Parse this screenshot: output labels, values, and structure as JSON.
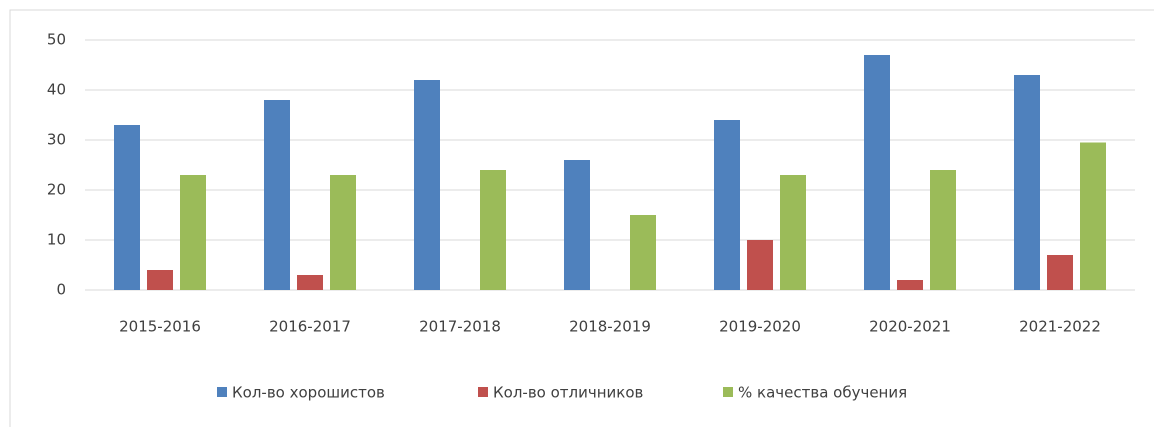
{
  "chart_data": {
    "type": "bar",
    "categories": [
      "2015-2016",
      "2016-2017",
      "2017-2018",
      "2018-2019",
      "2019-2020",
      "2020-2021",
      "2021-2022"
    ],
    "series": [
      {
        "name": "Кол-во хорошистов",
        "color": "#4f81bd",
        "values": [
          33,
          38,
          42,
          26,
          34,
          47,
          43
        ]
      },
      {
        "name": "Кол-во отличников",
        "color": "#c0504d",
        "values": [
          4,
          3,
          0,
          0,
          10,
          2,
          7
        ]
      },
      {
        "name": "% качества обучения",
        "color": "#9bbb59",
        "values": [
          23,
          23,
          24,
          15,
          23,
          24,
          29.5
        ]
      }
    ],
    "ylim": [
      0,
      50
    ],
    "yticks": [
      0,
      10,
      20,
      30,
      40,
      50
    ],
    "grid": true,
    "legend": "bottom"
  }
}
